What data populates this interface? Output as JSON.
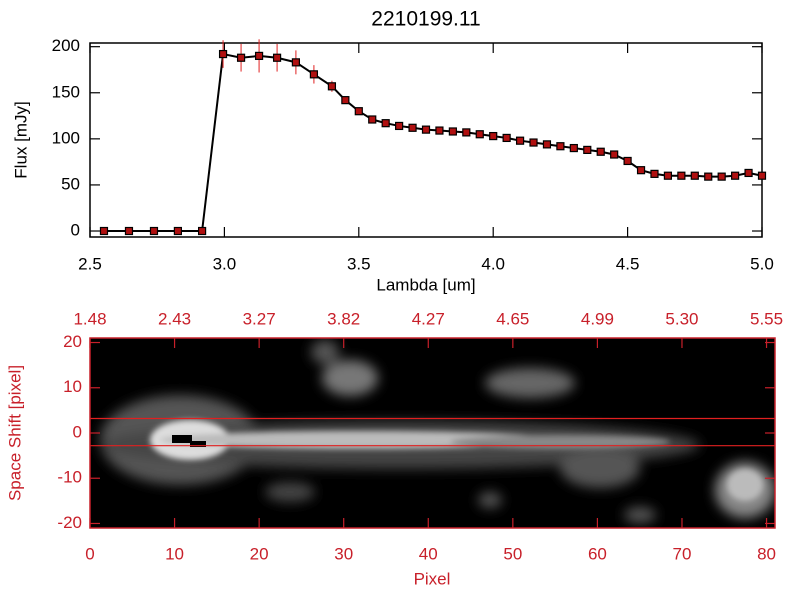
{
  "chart_data": [
    {
      "type": "line",
      "title": "2210199.11",
      "xlabel": "Lambda [um]",
      "ylabel": "Flux [mJy]",
      "x": [
        2.552,
        2.645,
        2.738,
        2.827,
        2.917,
        2.995,
        3.062,
        3.129,
        3.196,
        3.266,
        3.333,
        3.4,
        3.45,
        3.5,
        3.55,
        3.6,
        3.65,
        3.7,
        3.75,
        3.8,
        3.85,
        3.9,
        3.95,
        4.0,
        4.05,
        4.1,
        4.15,
        4.2,
        4.25,
        4.3,
        4.35,
        4.4,
        4.45,
        4.5,
        4.55,
        4.6,
        4.65,
        4.7,
        4.75,
        4.8,
        4.85,
        4.9,
        4.95,
        5.0
      ],
      "values": [
        0,
        0,
        0,
        0,
        0,
        192,
        188,
        190,
        188,
        183,
        170,
        157,
        142,
        130,
        121,
        117,
        114,
        112,
        110,
        109,
        108,
        107,
        105,
        103,
        101,
        98,
        96,
        94,
        92,
        90,
        88,
        86,
        83,
        76,
        66,
        62,
        60,
        60,
        60,
        59,
        59,
        60,
        63,
        60
      ],
      "errors": [
        2,
        2,
        2,
        2,
        2,
        15,
        15,
        18,
        15,
        13,
        10,
        6,
        2,
        2,
        2,
        2,
        2,
        2,
        2,
        2,
        2,
        2,
        2,
        2,
        2,
        2,
        2,
        2,
        2,
        2,
        2,
        2,
        2,
        2,
        2,
        2,
        2,
        2,
        2,
        2,
        2,
        2,
        2,
        2
      ],
      "color": "#000000",
      "marker_color": "#b01010",
      "error_color": "#e02020",
      "xlim": [
        2.5,
        5.0
      ],
      "ylim": [
        -6.5,
        204
      ],
      "xticks": [
        2.5,
        {
          "value": 3,
          "label": "3.0"
        },
        3.5,
        {
          "value": 4,
          "label": "4.0"
        },
        4.5,
        {
          "value": 5,
          "label": "5.0"
        }
      ],
      "yticks": [
        0,
        50,
        100,
        150,
        200
      ]
    },
    {
      "type": "image",
      "xlabel": "Pixel",
      "ylabel": "Space Shift [pixel]",
      "color": "#c8202a",
      "xlim": [
        0,
        81
      ],
      "ylim": [
        -21,
        21
      ],
      "xticks": [
        0,
        10,
        20,
        30,
        40,
        50,
        60,
        70,
        80
      ],
      "yticks": [
        -20,
        -10,
        0,
        10,
        20
      ],
      "x2ticks": [
        {
          "value": 0,
          "label": "1.48"
        },
        {
          "value": 10,
          "label": "2.43"
        },
        {
          "value": 20,
          "label": "3.27"
        },
        {
          "value": 30,
          "label": "3.82"
        },
        {
          "value": 40,
          "label": "4.27"
        },
        {
          "value": 50,
          "label": "4.65"
        },
        {
          "value": 60,
          "label": "4.99"
        },
        {
          "value": 70,
          "label": "5.30"
        },
        {
          "value": 80,
          "label": "5.55"
        }
      ],
      "hlines": [
        -2.8,
        3.2
      ],
      "hline_color": "#e02020"
    }
  ]
}
